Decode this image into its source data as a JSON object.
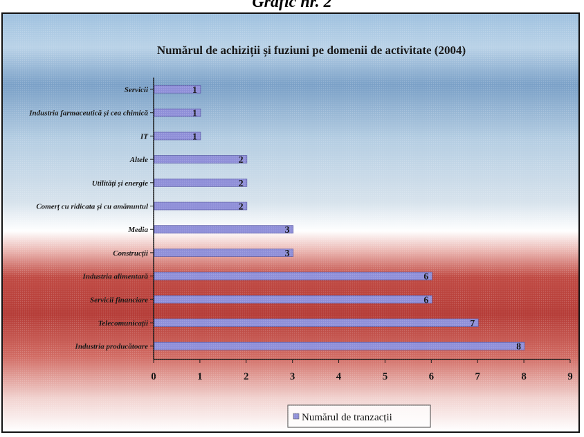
{
  "caption": "Grafic nr. 2",
  "chart_data": {
    "type": "bar",
    "orientation": "horizontal",
    "title": "Numărul de achiziții și fuziuni pe domenii de activitate (2004)",
    "categories": [
      "Servicii",
      "Industria farmaceutică și cea chimică",
      "IT",
      "Altele",
      "Utilități și energie",
      "Comerț cu ridicata și cu amănuntul",
      "Media",
      "Construcții",
      "Industria alimentară",
      "Servicii financiare",
      "Telecomunicații",
      "Industria producătoare"
    ],
    "series": [
      {
        "name": "Numărul de tranzacții",
        "values": [
          1,
          1,
          1,
          2,
          2,
          2,
          3,
          3,
          6,
          6,
          7,
          8
        ],
        "color": "#8f8fd8"
      }
    ],
    "xlim": [
      0,
      9
    ],
    "ticks": [
      0,
      1,
      2,
      3,
      4,
      5,
      6,
      7,
      8,
      9
    ],
    "grid": false,
    "legend_position": "bottom"
  }
}
